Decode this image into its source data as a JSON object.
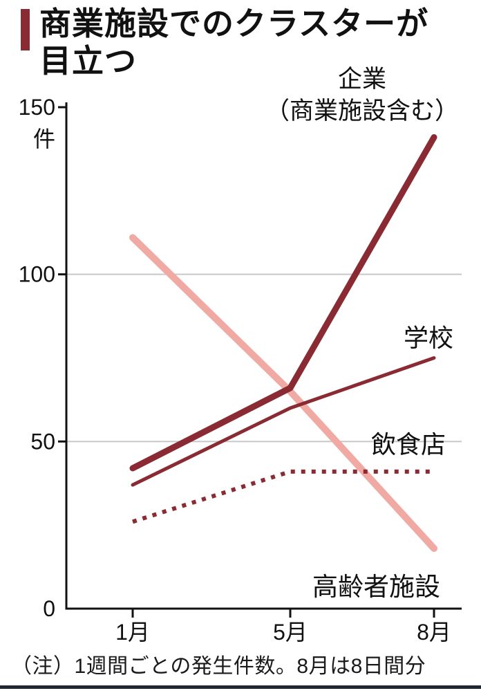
{
  "title": "商業施設でのクラスターが\n目立つ",
  "note": "（注）1週間ごとの発生件数。8月は8日間分",
  "colors": {
    "dark_red": "#8a2a32",
    "pink": "#f1a9a3",
    "grid": "#c8c8c8",
    "axis": "#111111",
    "rule": "#1f2733"
  },
  "chart_data": {
    "type": "line",
    "x": [
      "1月",
      "5月",
      "8月"
    ],
    "ylabel": "件",
    "ylim": [
      0,
      150
    ],
    "yticks": [
      0,
      50,
      100,
      150
    ],
    "grid": "horizontal gridlines at 50 and 100",
    "legend_position": "direct labels on chart",
    "series": [
      {
        "name": "企業（商業施設含む）",
        "label": "企業\n（商業施設含む）",
        "values": [
          42,
          66,
          141
        ],
        "color": "#8a2a32",
        "width": 9,
        "style": "solid"
      },
      {
        "name": "学校",
        "label": "学校",
        "values": [
          37,
          60,
          75
        ],
        "color": "#8a2a32",
        "width": 5,
        "style": "solid"
      },
      {
        "name": "飲食店",
        "label": "飲食店",
        "values": [
          26,
          41,
          41
        ],
        "color": "#8a2a32",
        "width": 6,
        "style": "dotted"
      },
      {
        "name": "高齢者施設",
        "label": "高齢者施設",
        "values": [
          111,
          65,
          18
        ],
        "color": "#f1a9a3",
        "width": 10,
        "style": "solid"
      }
    ]
  }
}
